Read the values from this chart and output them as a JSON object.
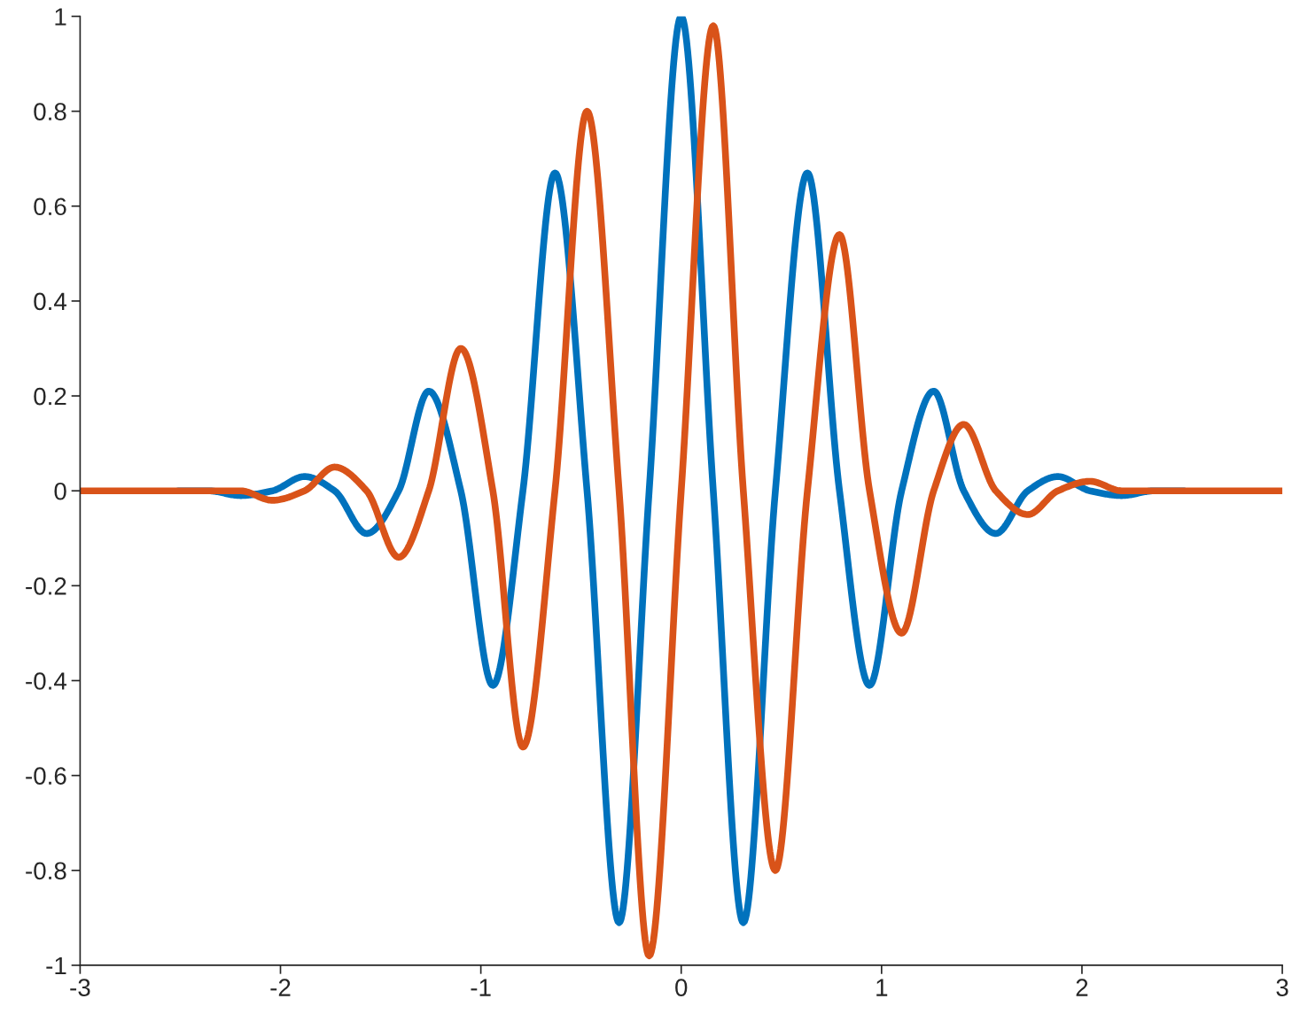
{
  "chart_data": {
    "type": "line",
    "x": [
      -3,
      -2.9,
      -2.8,
      -2.7,
      -2.6,
      -2.51,
      -2.36,
      -2.2,
      -2.04,
      -1.88,
      -1.73,
      -1.57,
      -1.41,
      -1.26,
      -1.1,
      -0.94,
      -0.79,
      -0.63,
      -0.47,
      -0.31,
      -0.16,
      0,
      0.16,
      0.31,
      0.47,
      0.63,
      0.79,
      0.94,
      1.1,
      1.26,
      1.41,
      1.57,
      1.73,
      1.88,
      2.04,
      2.2,
      2.36,
      2.51,
      2.6,
      2.7,
      2.8,
      2.9,
      3
    ],
    "series": [
      {
        "color": "#0072bd",
        "values": [
          null,
          null,
          null,
          null,
          null,
          0,
          0,
          -0.01,
          0,
          0.03,
          0,
          -0.09,
          0,
          0.21,
          0,
          -0.41,
          0,
          0.67,
          0,
          -0.91,
          0,
          1,
          0,
          -0.91,
          0,
          0.67,
          0,
          -0.41,
          0,
          0.21,
          0,
          -0.09,
          0,
          0.03,
          0,
          -0.01,
          0,
          0,
          null,
          null,
          null,
          null,
          null
        ]
      },
      {
        "color": "#d95319",
        "values": [
          0,
          0,
          0,
          0,
          0,
          0,
          0,
          0,
          -0.02,
          0,
          0.05,
          0,
          -0.14,
          0,
          0.3,
          0,
          -0.54,
          0,
          0.8,
          0,
          -0.98,
          0,
          0.98,
          0,
          -0.8,
          0,
          0.54,
          0,
          -0.3,
          0,
          0.14,
          0,
          -0.05,
          0,
          0.02,
          0,
          0,
          0,
          0,
          0,
          0,
          0,
          0
        ]
      }
    ],
    "xlim": [
      -3,
      3
    ],
    "ylim": [
      -1,
      1
    ],
    "xticks": [
      -3,
      -2,
      -1,
      0,
      1,
      2,
      3
    ],
    "yticks": [
      -1,
      -0.8,
      -0.6,
      -0.4,
      -0.2,
      0,
      0.2,
      0.4,
      0.6,
      0.8,
      1
    ],
    "line_style": "solid"
  }
}
